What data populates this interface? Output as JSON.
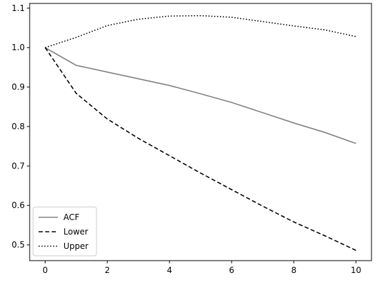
{
  "chart_data": {
    "type": "line",
    "title": "",
    "xlabel": "",
    "ylabel": "",
    "xlim": [
      -0.5,
      10.5
    ],
    "ylim": [
      0.46,
      1.112
    ],
    "x_ticks": [
      0,
      2,
      4,
      6,
      8,
      10
    ],
    "x_tick_labels": [
      "0",
      "2",
      "4",
      "6",
      "8",
      "10"
    ],
    "y_ticks": [
      0.5,
      0.6,
      0.7,
      0.8,
      0.9,
      1.0,
      1.1
    ],
    "y_tick_labels": [
      "0.5",
      "0.6",
      "0.7",
      "0.8",
      "0.9",
      "1.0",
      "1.1"
    ],
    "grid": false,
    "legend_position": "lower-left",
    "x": [
      0,
      1,
      2,
      3,
      4,
      5,
      6,
      7,
      8,
      9,
      10
    ],
    "series": [
      {
        "name": "ACF",
        "color": "#808080",
        "line_style": "solid",
        "values": [
          1.0,
          0.955,
          0.938,
          0.921,
          0.904,
          0.883,
          0.861,
          0.835,
          0.809,
          0.785,
          0.757
        ]
      },
      {
        "name": "Lower",
        "color": "#000000",
        "line_style": "dashed",
        "values": [
          1.0,
          0.884,
          0.819,
          0.77,
          0.726,
          0.682,
          0.64,
          0.598,
          0.558,
          0.523,
          0.486
        ]
      },
      {
        "name": "Upper",
        "color": "#000000",
        "line_style": "dotted",
        "values": [
          1.0,
          1.026,
          1.056,
          1.072,
          1.08,
          1.081,
          1.077,
          1.066,
          1.055,
          1.045,
          1.028
        ]
      }
    ]
  }
}
